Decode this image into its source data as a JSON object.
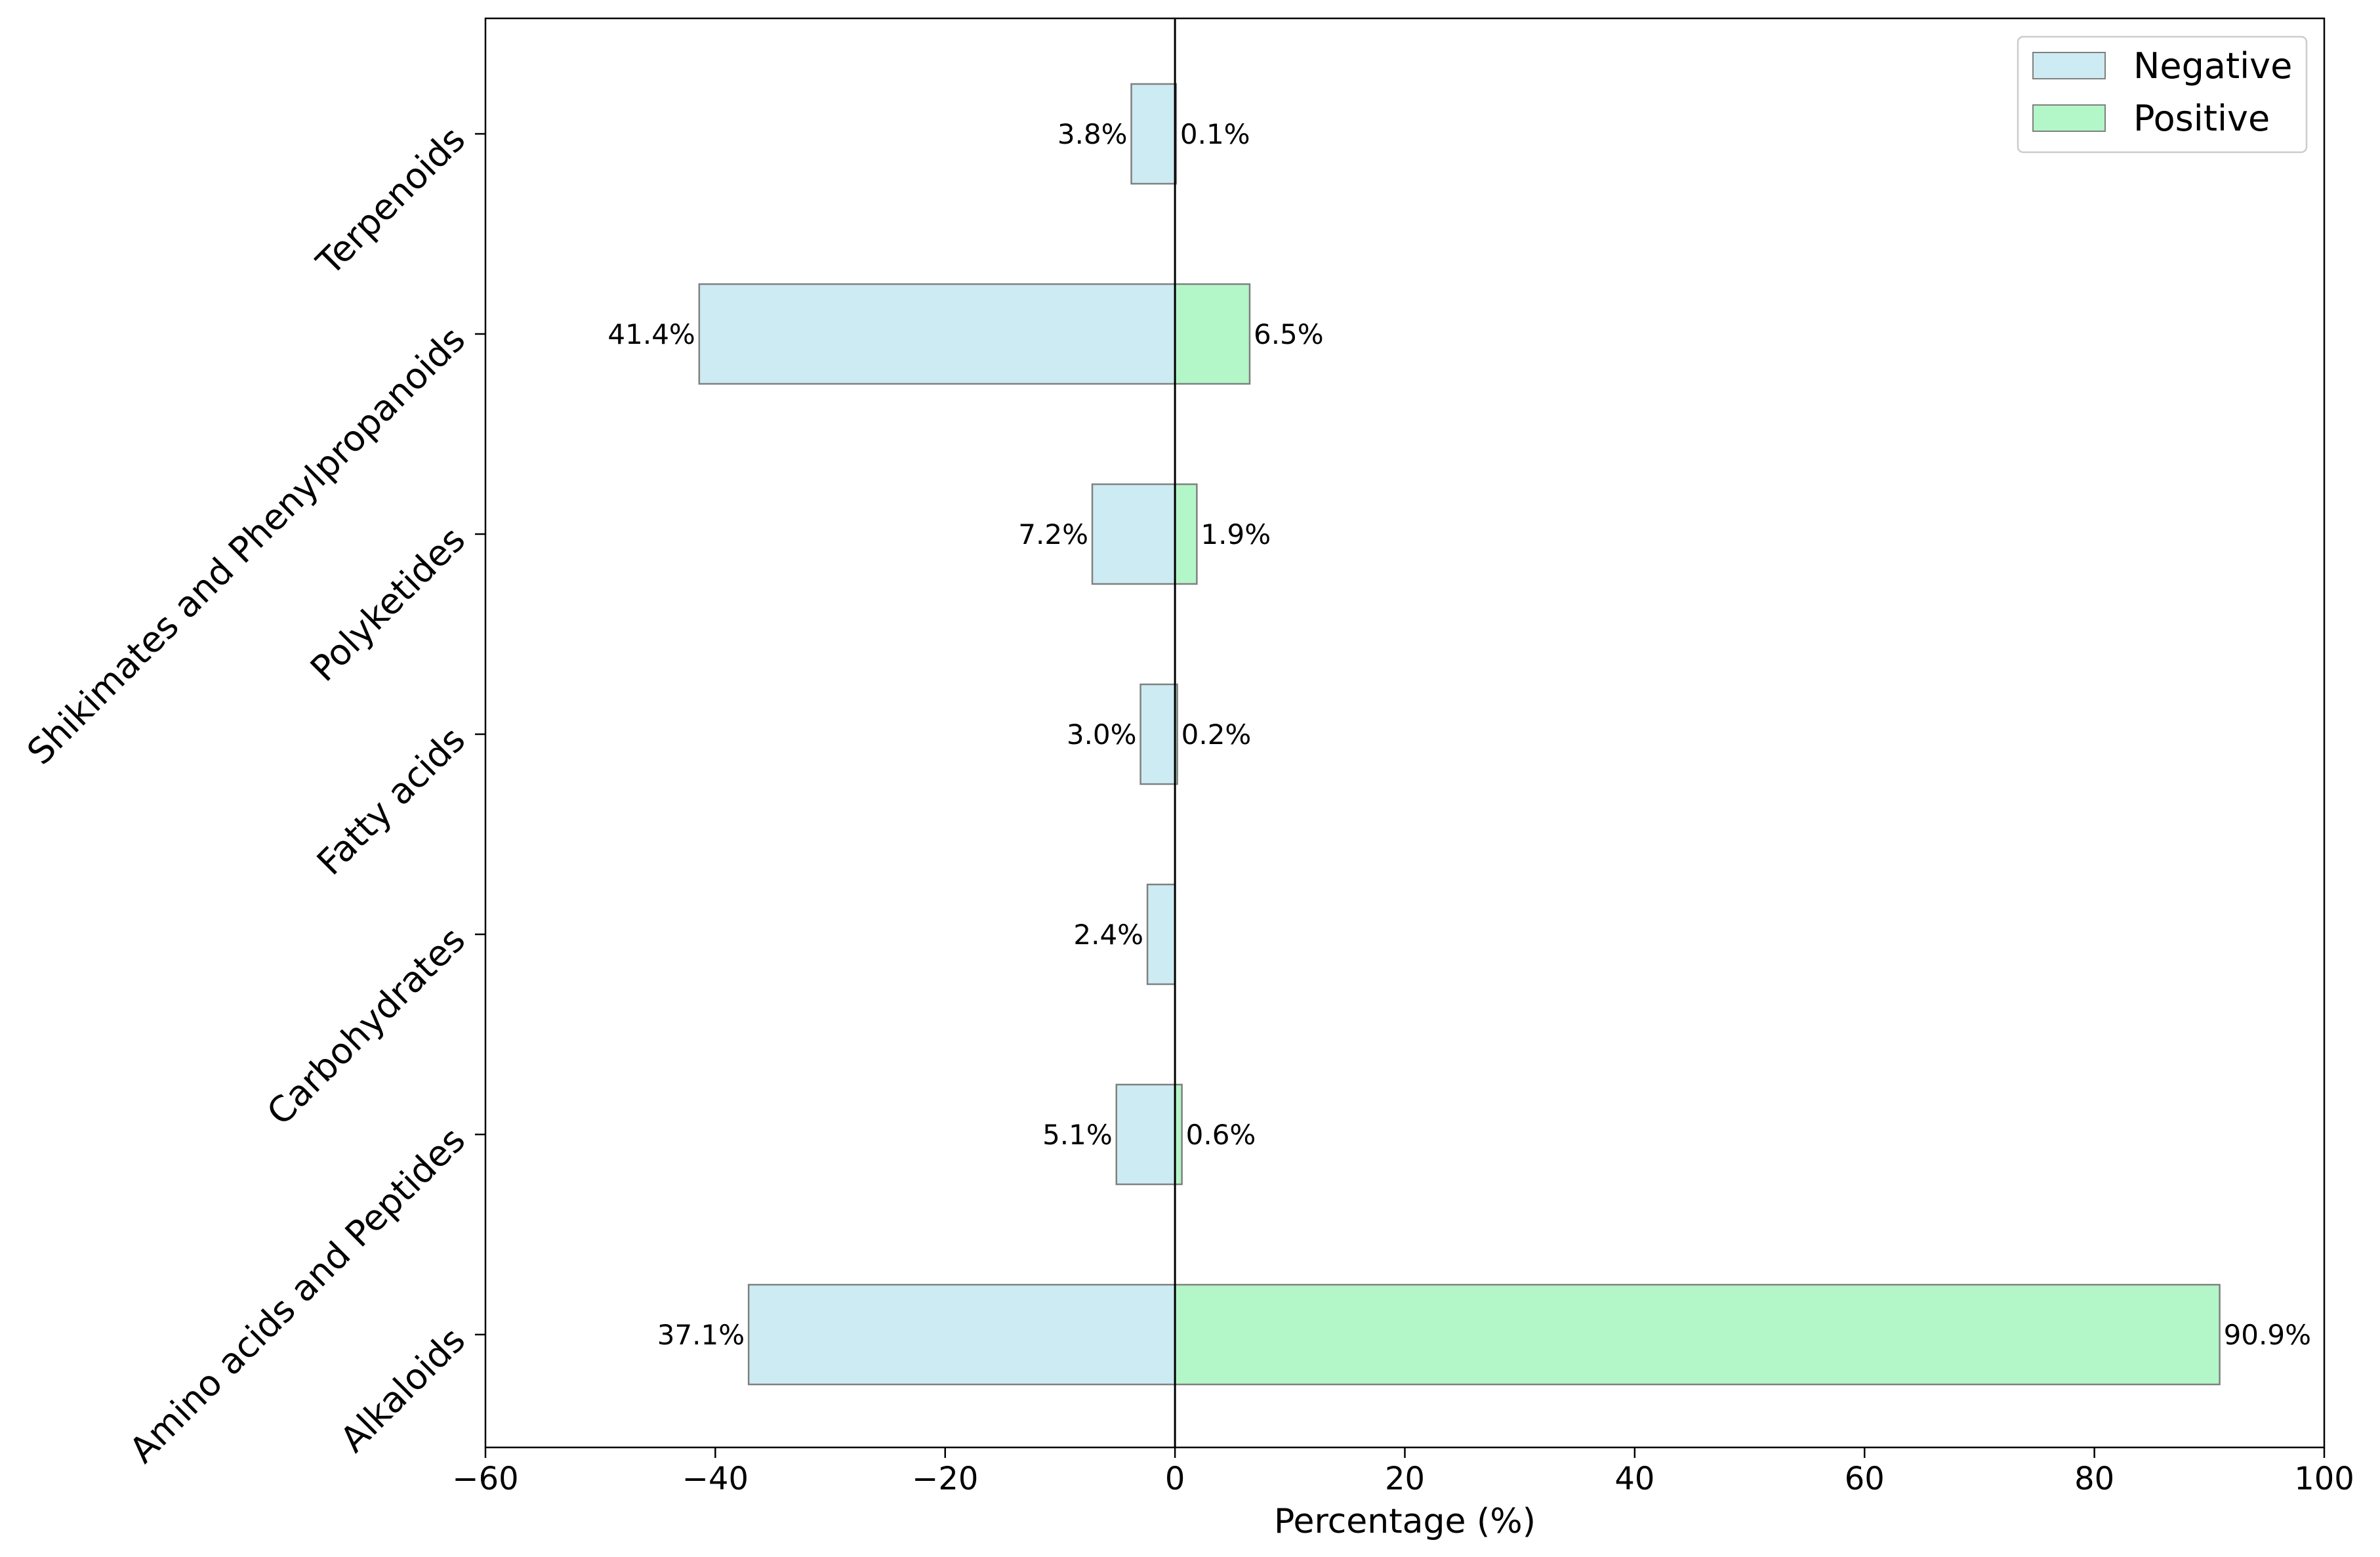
{
  "chart_data": {
    "type": "bar",
    "orientation": "horizontal",
    "categories": [
      "Terpenoids",
      "Shikimates and Phenylpropanoids",
      "Polyketides",
      "Fatty acids",
      "Carbohydrates",
      "Amino acids and Peptides",
      "Alkaloids"
    ],
    "series": [
      {
        "name": "Negative",
        "values": [
          -3.8,
          -41.4,
          -7.2,
          -3.0,
          -2.4,
          -5.1,
          -37.1
        ],
        "labels": [
          "3.8%",
          "41.4%",
          "7.2%",
          "3.0%",
          "2.4%",
          "5.1%",
          "37.1%"
        ],
        "color": "#cdebf2"
      },
      {
        "name": "Positive",
        "values": [
          0.1,
          6.5,
          1.9,
          0.2,
          0.0,
          0.6,
          90.9
        ],
        "labels": [
          "0.1%",
          "6.5%",
          "1.9%",
          "0.2%",
          "",
          "0.6%",
          "90.9%"
        ],
        "color": "#b3f6c8"
      }
    ],
    "xlabel": "Percentage (%)",
    "ylabel": "",
    "title": "",
    "xlim": [
      -60,
      100
    ],
    "xticks": [
      -60,
      -40,
      -20,
      0,
      20,
      40,
      60,
      80,
      100
    ],
    "xtick_labels": [
      "−60",
      "−40",
      "−20",
      "0",
      "20",
      "40",
      "60",
      "80",
      "100"
    ],
    "legend_position": "top-right",
    "grid": false,
    "bar_edge_color": "#808080"
  }
}
